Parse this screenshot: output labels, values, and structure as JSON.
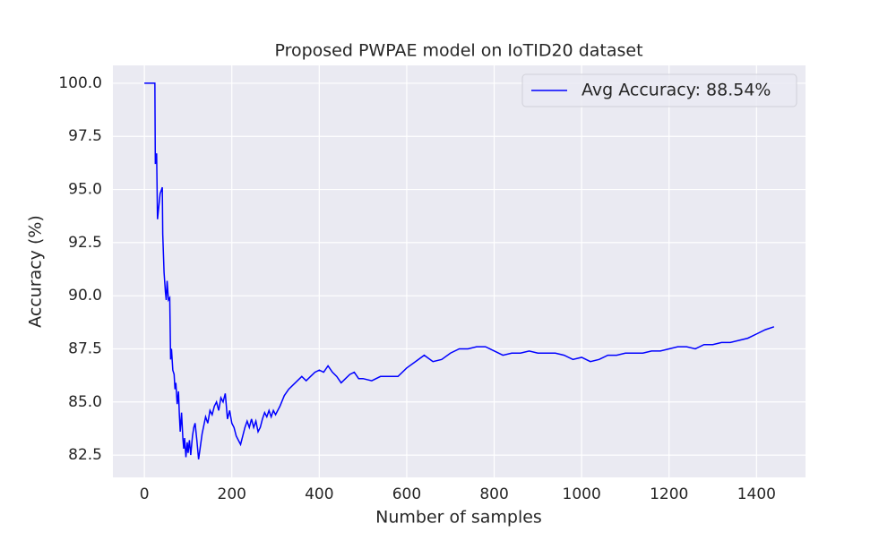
{
  "chart_data": {
    "type": "line",
    "title": "Proposed PWPAE model on IoTID20 dataset",
    "x_label": "Number of samples",
    "y_label": "Accuracy (%)",
    "x": [
      0,
      24,
      25,
      28,
      30,
      33,
      36,
      41,
      42,
      45,
      48,
      50,
      52,
      55,
      58,
      60,
      62,
      65,
      68,
      70,
      72,
      75,
      78,
      80,
      82,
      85,
      88,
      90,
      92,
      95,
      98,
      100,
      103,
      106,
      110,
      113,
      116,
      120,
      124,
      128,
      132,
      136,
      140,
      145,
      150,
      155,
      160,
      165,
      170,
      175,
      180,
      185,
      190,
      195,
      200,
      205,
      210,
      215,
      220,
      225,
      230,
      235,
      240,
      245,
      250,
      255,
      260,
      265,
      270,
      275,
      280,
      285,
      290,
      295,
      300,
      310,
      320,
      330,
      340,
      350,
      360,
      370,
      380,
      390,
      400,
      410,
      420,
      430,
      440,
      450,
      460,
      470,
      480,
      490,
      500,
      520,
      540,
      560,
      580,
      600,
      620,
      640,
      660,
      680,
      700,
      720,
      740,
      760,
      780,
      800,
      820,
      840,
      860,
      880,
      900,
      920,
      940,
      960,
      980,
      1000,
      1020,
      1040,
      1060,
      1080,
      1100,
      1120,
      1140,
      1160,
      1180,
      1200,
      1220,
      1240,
      1260,
      1280,
      1300,
      1320,
      1340,
      1360,
      1380,
      1400,
      1420,
      1440
    ],
    "series": [
      {
        "name": "Avg Accuracy: 88.54%",
        "color": "#0000ff",
        "values": [
          100,
          100,
          96.2,
          96.7,
          93.6,
          94.2,
          94.8,
          95.1,
          92.9,
          91.1,
          90.2,
          89.8,
          90.7,
          89.8,
          89.9,
          87.0,
          87.5,
          86.5,
          86.3,
          85.6,
          85.9,
          84.9,
          85.5,
          84.4,
          83.6,
          84.5,
          83.3,
          82.8,
          83.3,
          82.4,
          83.1,
          82.6,
          83.2,
          82.5,
          83.4,
          83.8,
          84.0,
          83.2,
          82.3,
          82.9,
          83.5,
          83.9,
          84.3,
          84.0,
          84.6,
          84.4,
          84.8,
          85.0,
          84.6,
          85.2,
          85.0,
          85.4,
          84.2,
          84.6,
          84.0,
          83.8,
          83.4,
          83.2,
          83.0,
          83.4,
          83.8,
          84.1,
          83.8,
          84.2,
          83.8,
          84.1,
          83.6,
          83.8,
          84.2,
          84.5,
          84.3,
          84.6,
          84.3,
          84.6,
          84.4,
          84.8,
          85.3,
          85.6,
          85.8,
          86.0,
          86.2,
          86.0,
          86.2,
          86.4,
          86.5,
          86.4,
          86.7,
          86.4,
          86.2,
          85.9,
          86.1,
          86.3,
          86.4,
          86.1,
          86.1,
          86.0,
          86.2,
          86.2,
          86.2,
          86.6,
          86.9,
          87.2,
          86.9,
          87.0,
          87.3,
          87.5,
          87.5,
          87.6,
          87.6,
          87.4,
          87.2,
          87.3,
          87.3,
          87.4,
          87.3,
          87.3,
          87.3,
          87.2,
          87.0,
          87.1,
          86.9,
          87.0,
          87.2,
          87.2,
          87.3,
          87.3,
          87.3,
          87.4,
          87.4,
          87.5,
          87.6,
          87.6,
          87.5,
          87.7,
          87.7,
          87.8,
          87.8,
          87.9,
          88.0,
          88.2,
          88.4,
          88.54
        ]
      }
    ],
    "xlim": [
      -72,
      1512
    ],
    "ylim": [
      81.45,
      100.84
    ],
    "xticks": [
      0,
      200,
      400,
      600,
      800,
      1000,
      1200,
      1400
    ],
    "yticks": [
      82.5,
      {
        "value": 85,
        "label": "85.0"
      },
      87.5,
      {
        "value": 90,
        "label": "90.0"
      },
      92.5,
      {
        "value": 95,
        "label": "95.0"
      },
      97.5,
      {
        "value": 100,
        "label": "100.0"
      }
    ],
    "grid": true,
    "legend": "upper right"
  }
}
